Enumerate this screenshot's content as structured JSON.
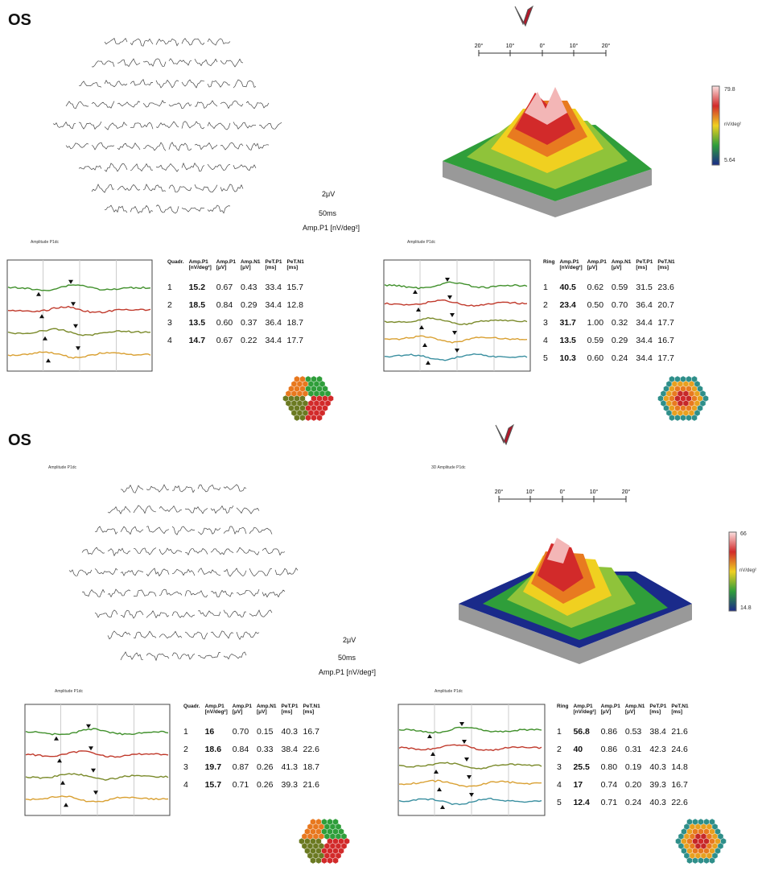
{
  "panels": [
    {
      "eye": "OS",
      "field_title": "",
      "plot3d_title": "",
      "scale_ticks": [
        "20°",
        "10°",
        "0°",
        "10°",
        "20°"
      ],
      "colorbar": {
        "max": "79.8",
        "min": "5.64",
        "unit": "nV/deg²"
      },
      "calib": {
        "uv": "2μV",
        "ms": "50ms",
        "label": "Amp.P1 [nV/deg²]"
      },
      "quad_title": "Amplitude P1dc",
      "ring_title": "Amplitude P1dc",
      "quad_headers": [
        "Quadr.",
        "Amp.P1\n[nV/deg²]",
        "Amp.P1\n[μV]",
        "Amp.N1\n[μV]",
        "PeT.P1\n[ms]",
        "PeT.N1\n[ms]"
      ],
      "ring_headers": [
        "Ring",
        "Amp.P1\n[nV/deg²]",
        "Amp.P1\n[μV]",
        "Amp.N1\n[μV]",
        "PeT.P1\n[ms]",
        "PeT.N1\n[ms]"
      ],
      "quad_rows": [
        [
          "1",
          "15.2",
          "0.67",
          "0.43",
          "33.4",
          "15.7"
        ],
        [
          "2",
          "18.5",
          "0.84",
          "0.29",
          "34.4",
          "12.8"
        ],
        [
          "3",
          "13.5",
          "0.60",
          "0.37",
          "36.4",
          "18.7"
        ],
        [
          "4",
          "14.7",
          "0.67",
          "0.22",
          "34.4",
          "17.7"
        ]
      ],
      "ring_rows": [
        [
          "1",
          "40.5",
          "0.62",
          "0.59",
          "31.5",
          "23.6"
        ],
        [
          "2",
          "23.4",
          "0.50",
          "0.70",
          "36.4",
          "20.7"
        ],
        [
          "3",
          "31.7",
          "1.00",
          "0.32",
          "34.4",
          "17.7"
        ],
        [
          "4",
          "13.5",
          "0.59",
          "0.29",
          "34.4",
          "16.7"
        ],
        [
          "5",
          "10.3",
          "0.60",
          "0.24",
          "34.4",
          "17.7"
        ]
      ]
    },
    {
      "eye": "OS",
      "field_title": "Amplitude P1dc",
      "plot3d_title": "3D Amplitude P1dc",
      "scale_ticks": [
        "20°",
        "10°",
        "0°",
        "10°",
        "20°"
      ],
      "colorbar": {
        "max": "66",
        "min": "14.8",
        "unit": "nV/deg²"
      },
      "calib": {
        "uv": "2μV",
        "ms": "50ms",
        "label": "Amp.P1 [nV/deg²]"
      },
      "quad_title": "Amplitude P1dc",
      "ring_title": "Amplitude P1dc",
      "quad_headers": [
        "Quadr.",
        "Amp.P1\n[nV/deg²]",
        "Amp.P1\n[μV]",
        "Amp.N1\n[μV]",
        "PeT.P1\n[ms]",
        "PeT.N1\n[ms]"
      ],
      "ring_headers": [
        "Ring",
        "Amp.P1\n[nV/deg²]",
        "Amp.P1\n[μV]",
        "Amp.N1\n[μV]",
        "PeT.P1\n[ms]",
        "PeT.N1\n[ms]"
      ],
      "quad_rows": [
        [
          "1",
          "16",
          "0.70",
          "0.15",
          "40.3",
          "16.7"
        ],
        [
          "2",
          "18.6",
          "0.84",
          "0.33",
          "38.4",
          "22.6"
        ],
        [
          "3",
          "19.7",
          "0.87",
          "0.26",
          "41.3",
          "18.7"
        ],
        [
          "4",
          "15.7",
          "0.71",
          "0.26",
          "39.3",
          "21.6"
        ]
      ],
      "ring_rows": [
        [
          "1",
          "56.8",
          "0.86",
          "0.53",
          "38.4",
          "21.6"
        ],
        [
          "2",
          "40",
          "0.86",
          "0.31",
          "42.3",
          "24.6"
        ],
        [
          "3",
          "25.5",
          "0.80",
          "0.19",
          "40.3",
          "14.8"
        ],
        [
          "4",
          "17",
          "0.74",
          "0.20",
          "39.3",
          "16.7"
        ],
        [
          "5",
          "12.4",
          "0.71",
          "0.24",
          "40.3",
          "22.6"
        ]
      ]
    }
  ],
  "chart_data": [
    {
      "type": "table",
      "title": "",
      "series": [
        {
          "name": "Quadrant Amp.P1 [nV/deg²]",
          "categories": [
            "1",
            "2",
            "3",
            "4"
          ],
          "values": [
            15.2,
            18.5,
            13.5,
            14.7
          ]
        },
        {
          "name": "Ring Amp.P1 [nV/deg²]",
          "categories": [
            "1",
            "2",
            "3",
            "4",
            "5"
          ],
          "values": [
            40.5,
            23.4,
            31.7,
            13.5,
            10.3
          ]
        }
      ]
    },
    {
      "type": "table",
      "title": "",
      "series": [
        {
          "name": "Quadrant Amp.P1 [nV/deg²]",
          "categories": [
            "1",
            "2",
            "3",
            "4"
          ],
          "values": [
            16,
            18.6,
            19.7,
            15.7
          ]
        },
        {
          "name": "Ring Amp.P1 [nV/deg²]",
          "categories": [
            "1",
            "2",
            "3",
            "4",
            "5"
          ],
          "values": [
            56.8,
            40,
            25.5,
            17,
            12.4
          ]
        }
      ]
    }
  ],
  "colors": {
    "trace_green": "#3f8f2a",
    "trace_red": "#c0392b",
    "trace_olive": "#7a8a2a",
    "trace_orange": "#d9a032",
    "trace_teal": "#3a8fa0",
    "logo_red": "#b0182a"
  }
}
